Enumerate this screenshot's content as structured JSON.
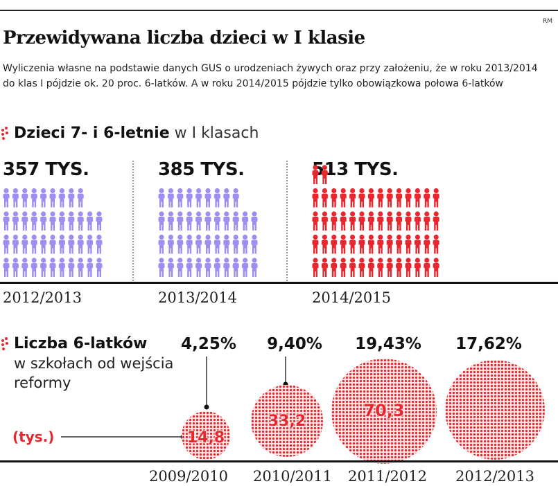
{
  "credit": "RM",
  "title": "Przewidywana liczba dzieci w I klasie",
  "subtitle": "Wyliczenia własne na podstawie danych GUS o urodzeniach żywych oraz przy założeniu, że w roku 2013/2014 do klas I pójdzie ok. 20 proc. 6-latków.  A w roku 2014/2015 pójdzie tylko obowiązkowa połowa 6-latków",
  "colors": {
    "purple": "#9d8ef0",
    "red": "#e8262e",
    "bubble_bg": "#fde3e3"
  },
  "chart_data": [
    {
      "type": "bar",
      "title_bold": "Dzieci 7- i 6-letnie",
      "title_light": " w I klasach",
      "unit": "TYS.",
      "categories": [
        "2012/2013",
        "2013/2014",
        "2014/2015"
      ],
      "value_labels": [
        "357 TYS.",
        "385 TYS.",
        "513 TYS."
      ],
      "values": [
        357,
        385,
        513
      ],
      "icon_counts": [
        42,
        42,
        58
      ],
      "icon_colors": [
        "#9d8ef0",
        "#9d8ef0",
        "#e8262e"
      ]
    },
    {
      "type": "scatter",
      "title_bold": "Liczba 6-latków",
      "title_line2": "w szkołach od wejścia",
      "title_line3": "reformy",
      "unit_label": "(tys.)",
      "categories": [
        "2009/2010",
        "2010/2011",
        "2011/2012",
        "2012/2013"
      ],
      "percent_labels": [
        "4,25%",
        "9,40%",
        "19,43%",
        "17,62%"
      ],
      "values": [
        14.8,
        33.2,
        70.3,
        null
      ],
      "value_labels": [
        "14,8",
        "33,2",
        "70,3",
        ""
      ]
    }
  ]
}
